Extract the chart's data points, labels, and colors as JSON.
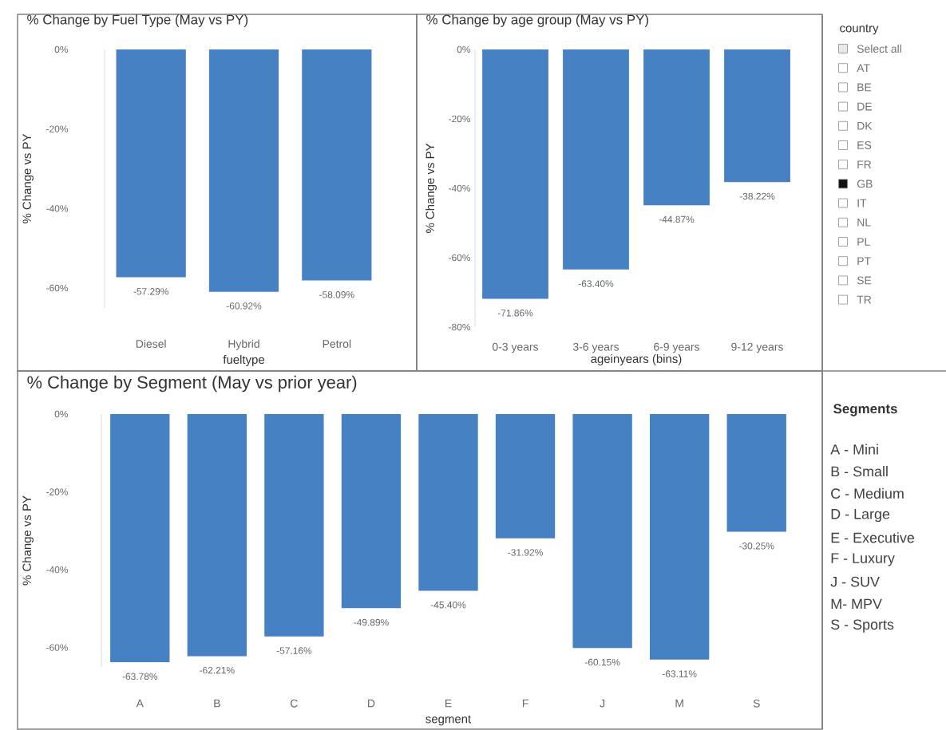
{
  "chart_data": [
    {
      "type": "bar",
      "title": "% Change by Fuel Type (May vs PY)",
      "xlabel": "fueltype",
      "ylabel": "% Change vs PY",
      "categories": [
        "Diesel",
        "Hybrid",
        "Petrol"
      ],
      "values": [
        -57.29,
        -60.92,
        -58.09
      ],
      "value_labels": [
        "-57.29%",
        "-60.92%",
        "-58.09%"
      ],
      "color": "#4682c3",
      "ylim": [
        -65,
        0
      ],
      "yticks": [
        {
          "value": 0,
          "label": "0%"
        },
        {
          "value": -20,
          "label": "-20%"
        },
        {
          "value": -40,
          "label": "-40%"
        },
        {
          "value": -60,
          "label": "-60%"
        }
      ]
    },
    {
      "type": "bar",
      "title": "% Change by age group (May vs PY)",
      "xlabel": "ageinyears (bins)",
      "ylabel": "% Change vs PY",
      "categories": [
        "0-3 years",
        "3-6 years",
        "6-9 years",
        "9-12 years"
      ],
      "values": [
        -71.86,
        -63.4,
        -44.87,
        -38.22
      ],
      "value_labels": [
        "-71.86%",
        "-63.40%",
        "-44.87%",
        "-38.22%"
      ],
      "color": "#4682c3",
      "ylim": [
        -80,
        0
      ],
      "yticks": [
        {
          "value": 0,
          "label": "0%"
        },
        {
          "value": -20,
          "label": "-20%"
        },
        {
          "value": -40,
          "label": "-40%"
        },
        {
          "value": -60,
          "label": "-60%"
        },
        {
          "value": -80,
          "label": "-80%"
        }
      ]
    },
    {
      "type": "bar",
      "title": "% Change by Segment (May vs prior year)",
      "xlabel": "segment",
      "ylabel": "% Change vs PY",
      "categories": [
        "A",
        "B",
        "C",
        "D",
        "E",
        "F",
        "J",
        "M",
        "S"
      ],
      "values": [
        -63.78,
        -62.21,
        -57.16,
        -49.89,
        -45.4,
        -31.92,
        -60.15,
        -63.11,
        -30.25
      ],
      "value_labels": [
        "-63.78%",
        "-62.21%",
        "-57.16%",
        "-49.89%",
        "-45.40%",
        "-31.92%",
        "-60.15%",
        "-63.11%",
        "-30.25%"
      ],
      "color": "#4682c3",
      "ylim": [
        -65,
        0
      ],
      "yticks": [
        {
          "value": 0,
          "label": "0%"
        },
        {
          "value": -20,
          "label": "-20%"
        },
        {
          "value": -40,
          "label": "-40%"
        },
        {
          "value": -60,
          "label": "-60%"
        }
      ]
    },
    {
      "type": "other",
      "title": "country",
      "categories": [
        "Select all",
        "AT",
        "BE",
        "DE",
        "DK",
        "ES",
        "FR",
        "GB",
        "IT",
        "NL",
        "PL",
        "PT",
        "SE",
        "TR"
      ],
      "colors": [
        "#e8e8e8",
        "#ffffff",
        "#ffffff",
        "#ffffff",
        "#ffffff",
        "#ffffff",
        "#ffffff",
        "#111111",
        "#ffffff",
        "#ffffff",
        "#ffffff",
        "#ffffff",
        "#ffffff",
        "#ffffff"
      ]
    },
    {
      "type": "other",
      "title": "Segments",
      "annotations": [
        "A - Mini",
        "B - Small",
        "C - Medium",
        "D - Large",
        "E - Executive",
        "F - Luxury",
        "J - SUV",
        "M- MPV",
        "S - Sports"
      ]
    }
  ]
}
